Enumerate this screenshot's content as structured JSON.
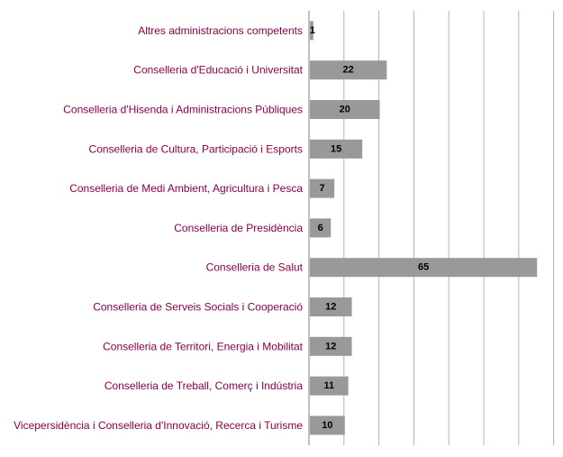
{
  "chart_data": {
    "type": "bar",
    "orientation": "horizontal",
    "categories": [
      "Altres administracions competents",
      "Conselleria d'Educació i Universitat",
      "Conselleria d'Hisenda i Administracions Públiques",
      "Conselleria de Cultura, Participació i Esports",
      "Conselleria de Medi Ambient, Agricultura i Pesca",
      "Conselleria de Presidència",
      "Conselleria de Salut",
      "Conselleria de Serveis Socials i Cooperació",
      "Conselleria de Territori, Energia i Mobilitat",
      "Conselleria de Treball, Comerç i Indústria",
      "Vicepersidència i Conselleria d'Innovació, Recerca i Turisme"
    ],
    "values": [
      1,
      22,
      20,
      15,
      7,
      6,
      65,
      12,
      12,
      11,
      10
    ],
    "data_labels": [
      "1",
      "22",
      "20",
      "15",
      "7",
      "6",
      "65",
      "12",
      "12",
      "11",
      "10"
    ],
    "xlim": [
      0,
      70
    ],
    "x_grid_step": 10,
    "grid": true,
    "legend": "none",
    "colors": {
      "bar": "#999999",
      "category_label": "#8b0045",
      "value_label": "#000000",
      "grid": "#b3b3b3"
    }
  }
}
